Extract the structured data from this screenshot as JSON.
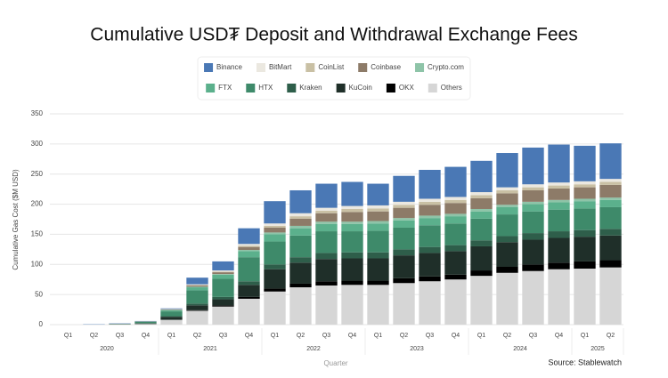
{
  "chart_data": {
    "type": "stacked-bar",
    "title": "Cumulative USD₮ Deposit and Withdrawal Exchange Fees",
    "y_label": "Cumulative Gas Cost ($M USD)",
    "x_label": "Quarter",
    "source": "Source: Stablewatch",
    "categories": [
      "Q1",
      "Q2",
      "Q3",
      "Q4",
      "Q1",
      "Q2",
      "Q3",
      "Q4",
      "Q1",
      "Q2",
      "Q3",
      "Q4",
      "Q1",
      "Q2",
      "Q3",
      "Q4",
      "Q1",
      "Q2",
      "Q3",
      "Q4",
      "Q1",
      "Q2"
    ],
    "category_groups": [
      {
        "label": "2020",
        "size": 4
      },
      {
        "label": "2021",
        "size": 4
      },
      {
        "label": "2022",
        "size": 4
      },
      {
        "label": "2023",
        "size": 4
      },
      {
        "label": "2024",
        "size": 4
      },
      {
        "label": "2025",
        "size": 2
      }
    ],
    "series": [
      {
        "name": "Binance",
        "color": "#4a78b5",
        "values": [
          0,
          0.5,
          0.5,
          0.5,
          1,
          11,
          15,
          26,
          37,
          38,
          40,
          40,
          36,
          43,
          48,
          50,
          52,
          57,
          61,
          63,
          59,
          59
        ]
      },
      {
        "name": "BitMart",
        "color": "#ebe8e0",
        "values": [
          0,
          0,
          0,
          0,
          0.5,
          1,
          2,
          3,
          4,
          5,
          5,
          5,
          5,
          5,
          5,
          5,
          5,
          5,
          5,
          5,
          5,
          5
        ]
      },
      {
        "name": "CoinList",
        "color": "#c9c0a4",
        "values": [
          0,
          0,
          0,
          0,
          0,
          1,
          1,
          2,
          3,
          4,
          4,
          5,
          5,
          5,
          5,
          5,
          5,
          5,
          5,
          5,
          5,
          5
        ]
      },
      {
        "name": "Coinbase",
        "color": "#8d7b68",
        "values": [
          0,
          0,
          0,
          0.5,
          1,
          2,
          3,
          5,
          8,
          12,
          14,
          16,
          16,
          17,
          18,
          18,
          18,
          19,
          19,
          19,
          19,
          21
        ]
      },
      {
        "name": "Crypto.com",
        "color": "#8ec4a8",
        "values": [
          0,
          0,
          0,
          0,
          0.5,
          1,
          1,
          2,
          3,
          4,
          4,
          4,
          4,
          4,
          4,
          4,
          4,
          4,
          4,
          4,
          4,
          4
        ]
      },
      {
        "name": "FTX",
        "color": "#5bb08c",
        "values": [
          0,
          0,
          0,
          0.5,
          2,
          5,
          7,
          10,
          12,
          12,
          12,
          12,
          12,
          12,
          12,
          12,
          12,
          12,
          12,
          12,
          12,
          12
        ]
      },
      {
        "name": "HTX",
        "color": "#3e8a6a",
        "values": [
          0,
          0,
          0.5,
          2,
          8,
          22,
          30,
          40,
          38,
          36,
          36,
          35,
          36,
          36,
          36,
          36,
          36,
          36,
          36,
          36,
          36,
          36
        ]
      },
      {
        "name": "Kraken",
        "color": "#2e5e4a",
        "values": [
          0,
          0,
          0,
          0.5,
          1,
          3,
          4,
          6,
          8,
          9,
          10,
          10,
          10,
          10,
          10,
          10,
          10,
          10,
          11,
          11,
          11,
          11
        ]
      },
      {
        "name": "KuCoin",
        "color": "#1f2f29",
        "values": [
          0,
          0,
          0.5,
          1,
          5,
          8,
          10,
          20,
          32,
          35,
          37,
          37,
          37,
          38,
          39,
          39,
          40,
          41,
          41,
          41,
          41,
          41
        ]
      },
      {
        "name": "OKX",
        "color": "#000000",
        "values": [
          0,
          0,
          0,
          0,
          0,
          1,
          2,
          3,
          5,
          6,
          7,
          7,
          7,
          8,
          8,
          8,
          9,
          10,
          11,
          11,
          12,
          12
        ]
      },
      {
        "name": "Others",
        "color": "#d6d6d6",
        "values": [
          0,
          0,
          0.5,
          1,
          8,
          23,
          30,
          43,
          55,
          62,
          65,
          66,
          66,
          69,
          72,
          75,
          81,
          86,
          89,
          92,
          93,
          95
        ]
      }
    ],
    "ylim": [
      0,
      350
    ],
    "yticks": [
      0,
      50,
      100,
      150,
      200,
      250,
      300,
      350
    ],
    "grid": true
  }
}
